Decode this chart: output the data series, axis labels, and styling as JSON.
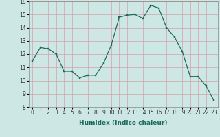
{
  "xlabel": "Humidex (Indice chaleur)",
  "x": [
    0,
    1,
    2,
    3,
    4,
    5,
    6,
    7,
    8,
    9,
    10,
    11,
    12,
    13,
    14,
    15,
    16,
    17,
    18,
    19,
    20,
    21,
    22,
    23
  ],
  "y": [
    11.5,
    12.5,
    12.4,
    12.0,
    10.7,
    10.7,
    10.2,
    10.4,
    10.4,
    11.3,
    12.7,
    14.8,
    14.95,
    15.0,
    14.7,
    15.7,
    15.5,
    14.0,
    13.3,
    12.2,
    10.3,
    10.3,
    9.6,
    8.5
  ],
  "ylim": [
    8,
    16
  ],
  "yticks": [
    8,
    9,
    10,
    11,
    12,
    13,
    14,
    15,
    16
  ],
  "line_color": "#1a6b5a",
  "marker_color": "#1a6b5a",
  "bg_color": "#cde8e4",
  "grid_major_color": "#c8b8bc",
  "grid_minor_color": "#b8d8d4",
  "label_fontsize": 6.5,
  "axis_tick_fontsize": 5.5
}
